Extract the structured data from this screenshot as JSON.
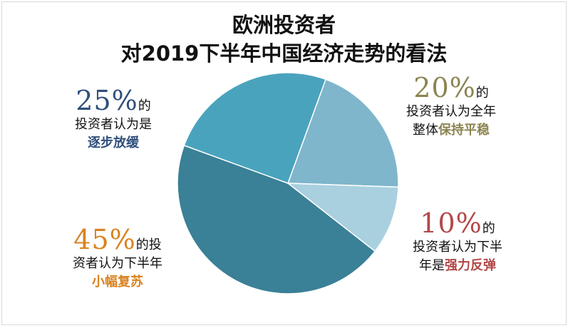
{
  "title": {
    "line1": "欧洲投资者",
    "line2": "对2019下半年中国经济走势的看法"
  },
  "chart_data": {
    "type": "pie",
    "title": "欧洲投资者 对2019下半年中国经济走势的看法",
    "slices": [
      {
        "name": "保持平稳",
        "value": 20,
        "color": "#7fb6cc"
      },
      {
        "name": "强力反弹",
        "value": 10,
        "color": "#a9d0df"
      },
      {
        "name": "小幅复苏",
        "value": 45,
        "color": "#3a8096"
      },
      {
        "name": "逐步放缓",
        "value": 25,
        "color": "#4aa3bd"
      }
    ]
  },
  "annotations": {
    "a20": {
      "pct": "20%",
      "de": "的",
      "line2": "投资者认为全年",
      "line3_pre": "整体",
      "line3_hl": "保持平稳",
      "color": "#8c8451"
    },
    "a25": {
      "pct": "25%",
      "de": "的",
      "line2": "投资者认为是",
      "line3_hl": "逐步放缓",
      "color": "#2f4f7b"
    },
    "a10": {
      "pct": "10%",
      "de": "的",
      "line2": "投资者认为下半",
      "line3_pre": "年是",
      "line3_hl": "强力反弹",
      "color": "#b34848"
    },
    "a45": {
      "pct": "45%",
      "de": "的投",
      "line2": "资者认为下半年",
      "line3_hl": "小幅复苏",
      "color": "#d9821f"
    }
  }
}
